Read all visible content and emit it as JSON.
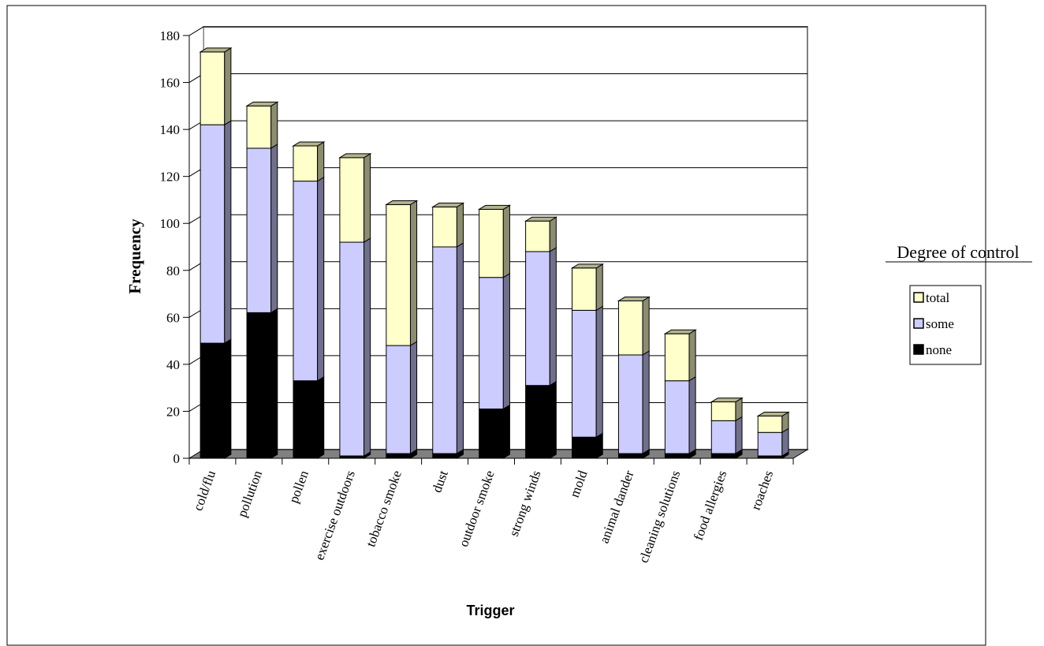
{
  "chart_data": {
    "type": "bar",
    "stacked": true,
    "three_d": true,
    "xlabel": "Trigger",
    "ylabel": "Frequency",
    "ylim": [
      0,
      180
    ],
    "yticks": [
      0,
      20,
      40,
      60,
      80,
      100,
      120,
      140,
      160,
      180
    ],
    "grid": true,
    "legend_title": "Degree of control",
    "legend_position": "right",
    "categories": [
      "cold/flu",
      "pollution",
      "pollen",
      "exercise outdoors",
      "tobacco smoke",
      "dust",
      "outdoor smoke",
      "strong winds",
      "mold",
      "animal dander",
      "cleaning solutions",
      "food allergies",
      "roaches"
    ],
    "series": [
      {
        "name": "none",
        "color": "#000000",
        "values": [
          49,
          62,
          33,
          1,
          2,
          2,
          21,
          31,
          9,
          2,
          2,
          2,
          1
        ]
      },
      {
        "name": "some",
        "color": "#ccccff",
        "values": [
          93,
          70,
          85,
          91,
          46,
          88,
          56,
          57,
          54,
          42,
          31,
          14,
          10
        ]
      },
      {
        "name": "total",
        "color": "#ffffcc",
        "values": [
          31,
          18,
          15,
          36,
          60,
          17,
          29,
          13,
          18,
          23,
          20,
          8,
          7
        ]
      }
    ]
  }
}
